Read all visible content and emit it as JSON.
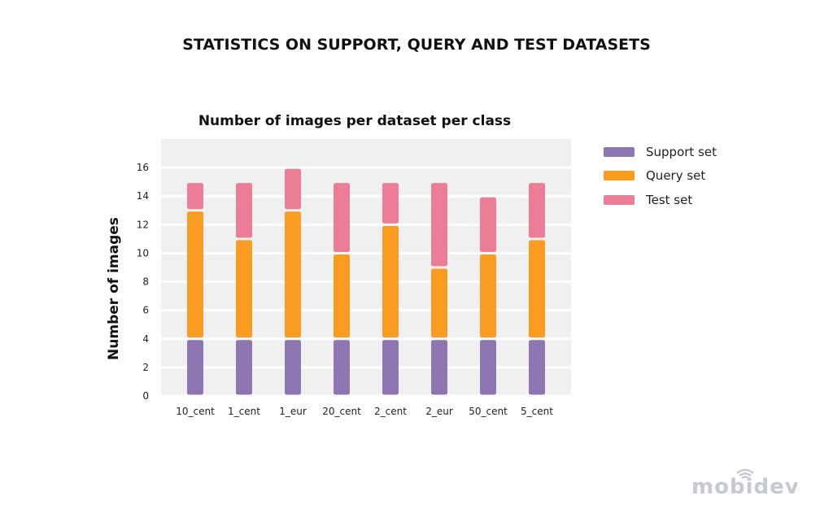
{
  "page_title": "STATISTICS ON SUPPORT, QUERY AND TEST DATASETS",
  "logo_text": "mobidev",
  "chart_data": {
    "type": "bar",
    "stacked": true,
    "title": "Number of images per dataset per class",
    "xlabel": "",
    "ylabel": "Number of images",
    "ylim": [
      0,
      18
    ],
    "yticks": [
      0,
      2,
      4,
      6,
      8,
      10,
      12,
      14,
      16
    ],
    "grid": true,
    "legend_position": "right",
    "categories": [
      "10_cent",
      "1_cent",
      "1_eur",
      "20_cent",
      "2_cent",
      "2_eur",
      "50_cent",
      "5_cent"
    ],
    "series": [
      {
        "name": "Support set",
        "color": "#8e76b3",
        "values": [
          4,
          4,
          4,
          4,
          4,
          4,
          4,
          4
        ]
      },
      {
        "name": "Query set",
        "color": "#fb9c22",
        "values": [
          9,
          7,
          9,
          6,
          8,
          5,
          6,
          7
        ]
      },
      {
        "name": "Test set",
        "color": "#ec7d96",
        "values": [
          2,
          4,
          3,
          5,
          3,
          6,
          4,
          4
        ]
      }
    ]
  }
}
